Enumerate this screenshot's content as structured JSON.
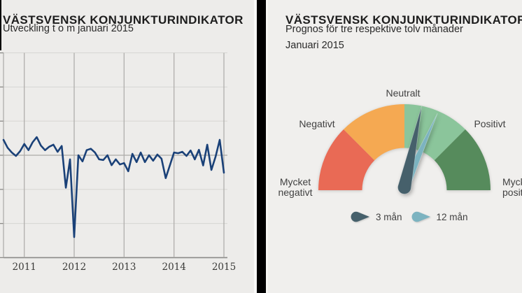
{
  "left_panel": {
    "title": "VÄSTSVENSK KONJUNKTURINDIKATOR",
    "subtitle": "Utveckling t o m januari 2015"
  },
  "right_panel": {
    "title": "VÄSTSVENSK KONJUNKTURINDIKATOR",
    "subtitle_line1": "Prognos för tre respektive tolv månader",
    "subtitle_line2": "Januari 2015"
  },
  "colors": {
    "panel_bg_left": "#edecea",
    "panel_bg_right": "#f0efed",
    "divider": "#000000",
    "line": "#1a4178",
    "grid_light": "#d9d8d5",
    "grid_dark": "#9b9a97",
    "grid_vertical": "#abaaa7",
    "axis": "#8b8a87",
    "tick_label": "#3a3a38"
  },
  "chart_data": [
    {
      "type": "line",
      "title": "VÄSTSVENSK KONJUNKTURINDIKATOR",
      "subtitle": "Utveckling t o m januari 2015",
      "x_start": "2010-08",
      "x_end": "2015-01",
      "x_tick_labels": [
        "2011",
        "2012",
        "2013",
        "2014",
        "2015"
      ],
      "ylim": [
        -3,
        3
      ],
      "y_gridline_step": 1,
      "zero_line": true,
      "grid": true,
      "line_color": "#1a4178",
      "values": [
        0.45,
        0.22,
        0.08,
        -0.02,
        0.12,
        0.33,
        0.15,
        0.38,
        0.53,
        0.28,
        0.15,
        0.25,
        0.31,
        0.1,
        0.27,
        -0.95,
        -0.12,
        -2.4,
        0.0,
        -0.18,
        0.15,
        0.19,
        0.08,
        -0.12,
        -0.14,
        0.0,
        -0.29,
        -0.12,
        -0.27,
        -0.23,
        -0.47,
        0.04,
        -0.2,
        0.08,
        -0.2,
        0.0,
        -0.16,
        0.02,
        -0.1,
        -0.67,
        -0.3,
        0.08,
        0.06,
        0.1,
        -0.02,
        0.14,
        -0.12,
        0.16,
        -0.3,
        0.31,
        -0.43,
        -0.04,
        0.45,
        -0.51
      ]
    },
    {
      "type": "gauge",
      "title": "VÄSTSVENSK KONJUNKTURINDIKATOR",
      "subtitle": "Prognos för tre respektive tolv månader Januari 2015",
      "labels": [
        "Mycket negativt",
        "Negativt",
        "Neutralt",
        "Positivt",
        "Mycket positivt"
      ],
      "scale": {
        "left_deg": 180,
        "right_deg": 0
      },
      "segments": [
        {
          "from_deg": 180,
          "to_deg": 135,
          "color": "#e96a55"
        },
        {
          "from_deg": 135,
          "to_deg": 90,
          "color": "#f5a952"
        },
        {
          "from_deg": 90,
          "to_deg": 45,
          "color": "#8bc59b"
        },
        {
          "from_deg": 45,
          "to_deg": 0,
          "color": "#568b5c"
        }
      ],
      "needles": [
        {
          "label": "3 mån",
          "angle_deg": 78,
          "color": "#46606b"
        },
        {
          "label": "12 mån",
          "angle_deg": 66,
          "color": "#7cb3c0"
        }
      ],
      "legend": [
        {
          "label": "3 mån",
          "color": "#46606b"
        },
        {
          "label": "12 mån",
          "color": "#7cb3c0"
        }
      ],
      "legend_position": "bottom"
    }
  ]
}
